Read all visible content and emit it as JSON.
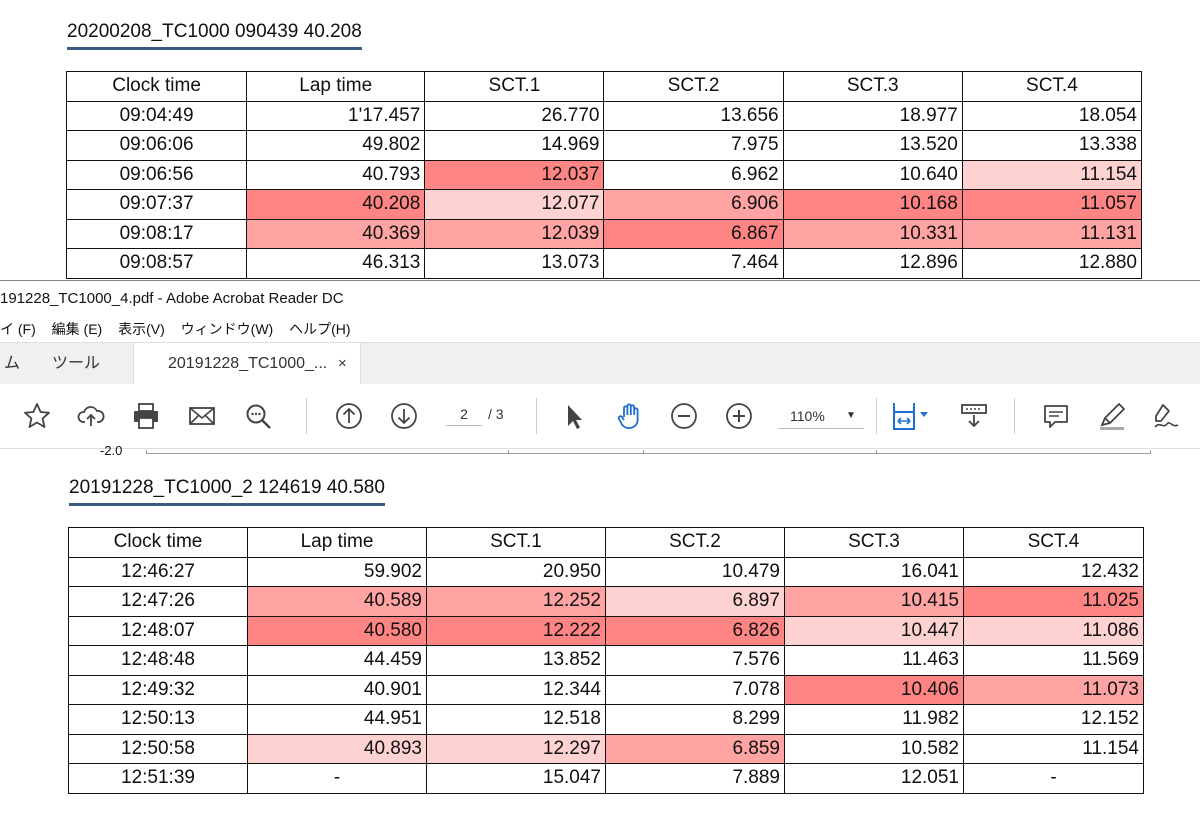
{
  "table1": {
    "heading": "20200208_TC1000 090439 40.208",
    "columns": [
      "Clock time",
      "Lap time",
      "SCT.1",
      "SCT.2",
      "SCT.3",
      "SCT.4"
    ],
    "rows": [
      [
        "09:04:49",
        "1'17.457",
        "26.770",
        "13.656",
        "18.977",
        "18.054"
      ],
      [
        "09:06:06",
        "49.802",
        "14.969",
        "7.975",
        "13.520",
        "13.338"
      ],
      [
        "09:06:56",
        "40.793",
        "12.037",
        "6.962",
        "10.640",
        "11.154"
      ],
      [
        "09:07:37",
        "40.208",
        "12.077",
        "6.906",
        "10.168",
        "11.057"
      ],
      [
        "09:08:17",
        "40.369",
        "12.039",
        "6.867",
        "10.331",
        "11.131"
      ],
      [
        "09:08:57",
        "46.313",
        "13.073",
        "7.464",
        "12.896",
        "12.880"
      ]
    ]
  },
  "window": {
    "title": "191228_TC1000_4.pdf - Adobe Acrobat Reader DC",
    "menu": [
      "イ (F)",
      "編集 (E)",
      "表示(V)",
      "ウィンドウ(W)",
      "ヘルプ(H)"
    ],
    "tabs": {
      "home": "ム",
      "tools": "ツール",
      "doc": "20191228_TC1000_...",
      "close": "×"
    },
    "page_current": "2",
    "page_sep": "/",
    "page_total": "3",
    "zoom": "110%",
    "y_tick": "-2.0"
  },
  "table2": {
    "heading": "20191228_TC1000_2 124619 40.580",
    "columns": [
      "Clock time",
      "Lap time",
      "SCT.1",
      "SCT.2",
      "SCT.3",
      "SCT.4"
    ],
    "rows": [
      [
        "12:46:27",
        "59.902",
        "20.950",
        "10.479",
        "16.041",
        "12.432"
      ],
      [
        "12:47:26",
        "40.589",
        "12.252",
        "6.897",
        "10.415",
        "11.025"
      ],
      [
        "12:48:07",
        "40.580",
        "12.222",
        "6.826",
        "10.447",
        "11.086"
      ],
      [
        "12:48:48",
        "44.459",
        "13.852",
        "7.576",
        "11.463",
        "11.569"
      ],
      [
        "12:49:32",
        "40.901",
        "12.344",
        "7.078",
        "10.406",
        "11.073"
      ],
      [
        "12:50:13",
        "44.951",
        "12.518",
        "8.299",
        "11.982",
        "12.152"
      ],
      [
        "12:50:58",
        "40.893",
        "12.297",
        "6.859",
        "10.582",
        "11.154"
      ],
      [
        "12:51:39",
        "-",
        "15.047",
        "7.889",
        "12.051",
        "-"
      ]
    ]
  },
  "colors": {
    "best": "#ff8585",
    "second": "#ffa3a3",
    "third": "#ffd2d2",
    "accent": "#1f6fd1"
  }
}
